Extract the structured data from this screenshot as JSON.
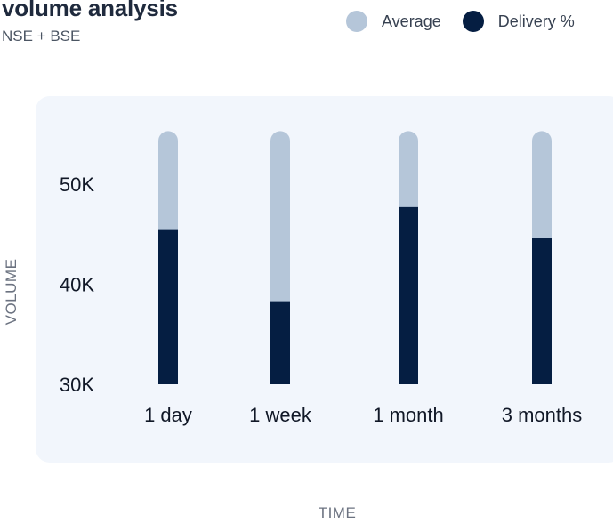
{
  "header": {
    "title": "volume analysis",
    "subtitle": "NSE + BSE"
  },
  "legend": {
    "items": [
      {
        "label": "Average",
        "color": "#b5c6d9"
      },
      {
        "label": "Delivery %",
        "color": "#051e42"
      }
    ]
  },
  "chart_data": {
    "type": "bar",
    "stacked": "overlay",
    "categories": [
      "1 day",
      "1 week",
      "1 month",
      "3 months"
    ],
    "series": [
      {
        "name": "Average",
        "color": "#b5c6d9",
        "values": [
          55300,
          55300,
          55300,
          55300
        ]
      },
      {
        "name": "Delivery %",
        "color": "#051e42",
        "values": [
          45500,
          38300,
          47700,
          44600
        ]
      }
    ],
    "ylabel": "VOLUME",
    "xlabel": "TIME",
    "yticks": [
      30000,
      40000,
      50000
    ],
    "ytick_labels": [
      "30K",
      "40K",
      "50K"
    ],
    "ylim": [
      30000,
      56000
    ],
    "grid": false,
    "legend_position": "top-right"
  }
}
